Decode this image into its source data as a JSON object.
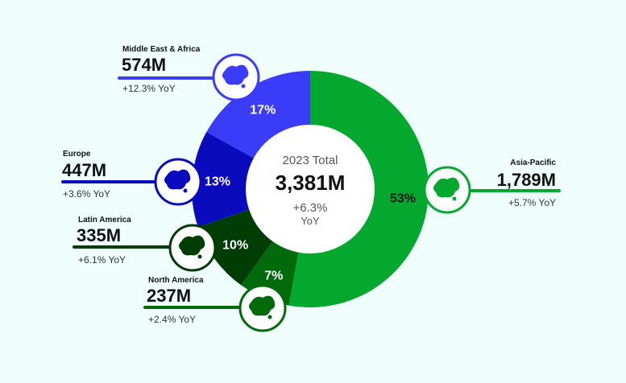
{
  "chart_data": {
    "type": "pie",
    "center": {
      "title": "2023 Total",
      "value": "3,381M",
      "yoy": "+6.3%",
      "yoy_unit": "YoY"
    },
    "segments": [
      {
        "name": "Asia-Pacific",
        "value": 1789,
        "value_label": "1,789M",
        "share_label": "53%",
        "yoy": "+5.7% YoY",
        "color": "#05a82e",
        "icon": "asia-pacific-map-icon"
      },
      {
        "name": "North America",
        "value": 237,
        "value_label": "237M",
        "share_label": "7%",
        "yoy": "+2.4% YoY",
        "color": "#016b0c",
        "icon": "north-america-map-icon"
      },
      {
        "name": "Latin America",
        "value": 335,
        "value_label": "335M",
        "share_label": "10%",
        "yoy": "+6.1% YoY",
        "color": "#003d05",
        "icon": "latin-america-map-icon"
      },
      {
        "name": "Europe",
        "value": 447,
        "value_label": "447M",
        "share_label": "13%",
        "yoy": "+3.6% YoY",
        "color": "#0a0bbc",
        "icon": "europe-map-icon"
      },
      {
        "name": "Middle East & Africa",
        "value": 574,
        "value_label": "574M",
        "share_label": "17%",
        "yoy": "+12.3% YoY",
        "color": "#3b3cf7",
        "icon": "africa-map-icon"
      }
    ]
  }
}
